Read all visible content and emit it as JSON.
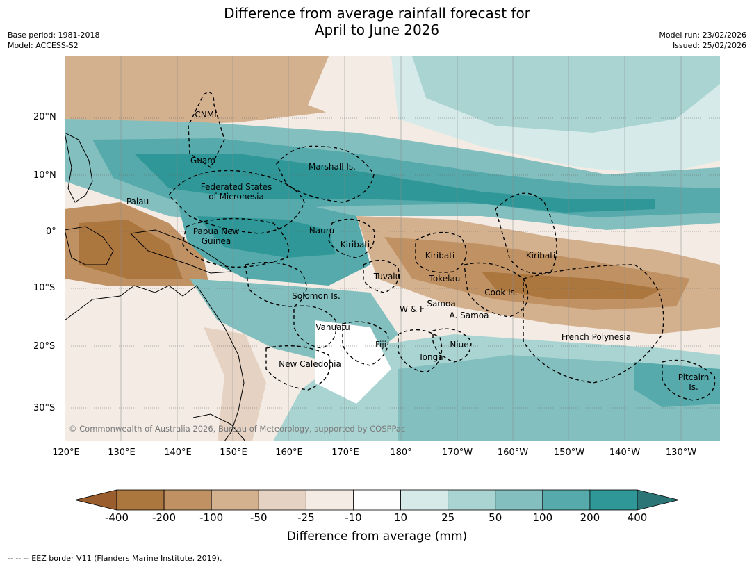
{
  "title_line1": "Difference from average rainfall forecast for",
  "title_line2": "April to June 2026",
  "meta_left": {
    "base_period": "Base period: 1981-2018",
    "model": "Model: ACCESS-S2"
  },
  "meta_right": {
    "model_run": "Model run: 23/02/2026",
    "issued": "Issued: 25/02/2026"
  },
  "lat_labels": [
    "20°N",
    "10°N",
    "0°",
    "10°S",
    "20°S",
    "30°S"
  ],
  "lon_labels": [
    "120°E",
    "130°E",
    "140°E",
    "150°E",
    "160°E",
    "170°E",
    "180°",
    "170°W",
    "160°W",
    "150°W",
    "140°W",
    "130°W"
  ],
  "places": [
    "CNMI",
    "Guam",
    "Marshall Is.",
    "Federated States",
    "of Micronesia",
    "Palau",
    "Papua New",
    "Guinea",
    "Nauru",
    "Kiribati",
    "Kiribati",
    "Kiribati",
    "Tuvalu",
    "Tokelau",
    "Cook Is.",
    "Solomon Is.",
    "W & F",
    "Samoa",
    "A. Samoa",
    "Vanuatu",
    "Fiji",
    "Niue",
    "French Polynesia",
    "Tonga",
    "New Caledonia",
    "Pitcairn",
    "Is."
  ],
  "copyright": "© Commonwealth of Australia 2026, Bureau of Meteorology, supported by COSPPac",
  "colorbar": {
    "ticks": [
      "-400",
      "-200",
      "-100",
      "-50",
      "-25",
      "-10",
      "10",
      "25",
      "50",
      "100",
      "200",
      "400"
    ],
    "colors": [
      "#9a5d2e",
      "#ac763f",
      "#c09263",
      "#d3b18f",
      "#e5d2c2",
      "#f3ebe4",
      "#ffffff",
      "#d6ebe9",
      "#a9d4d2",
      "#83bfbf",
      "#56aaab",
      "#2f9797",
      "#2c7576"
    ],
    "label": "Difference from average (mm)"
  },
  "footer": "-- -- -- EEZ border V11 (Flanders Marine Institute, 2019)."
}
